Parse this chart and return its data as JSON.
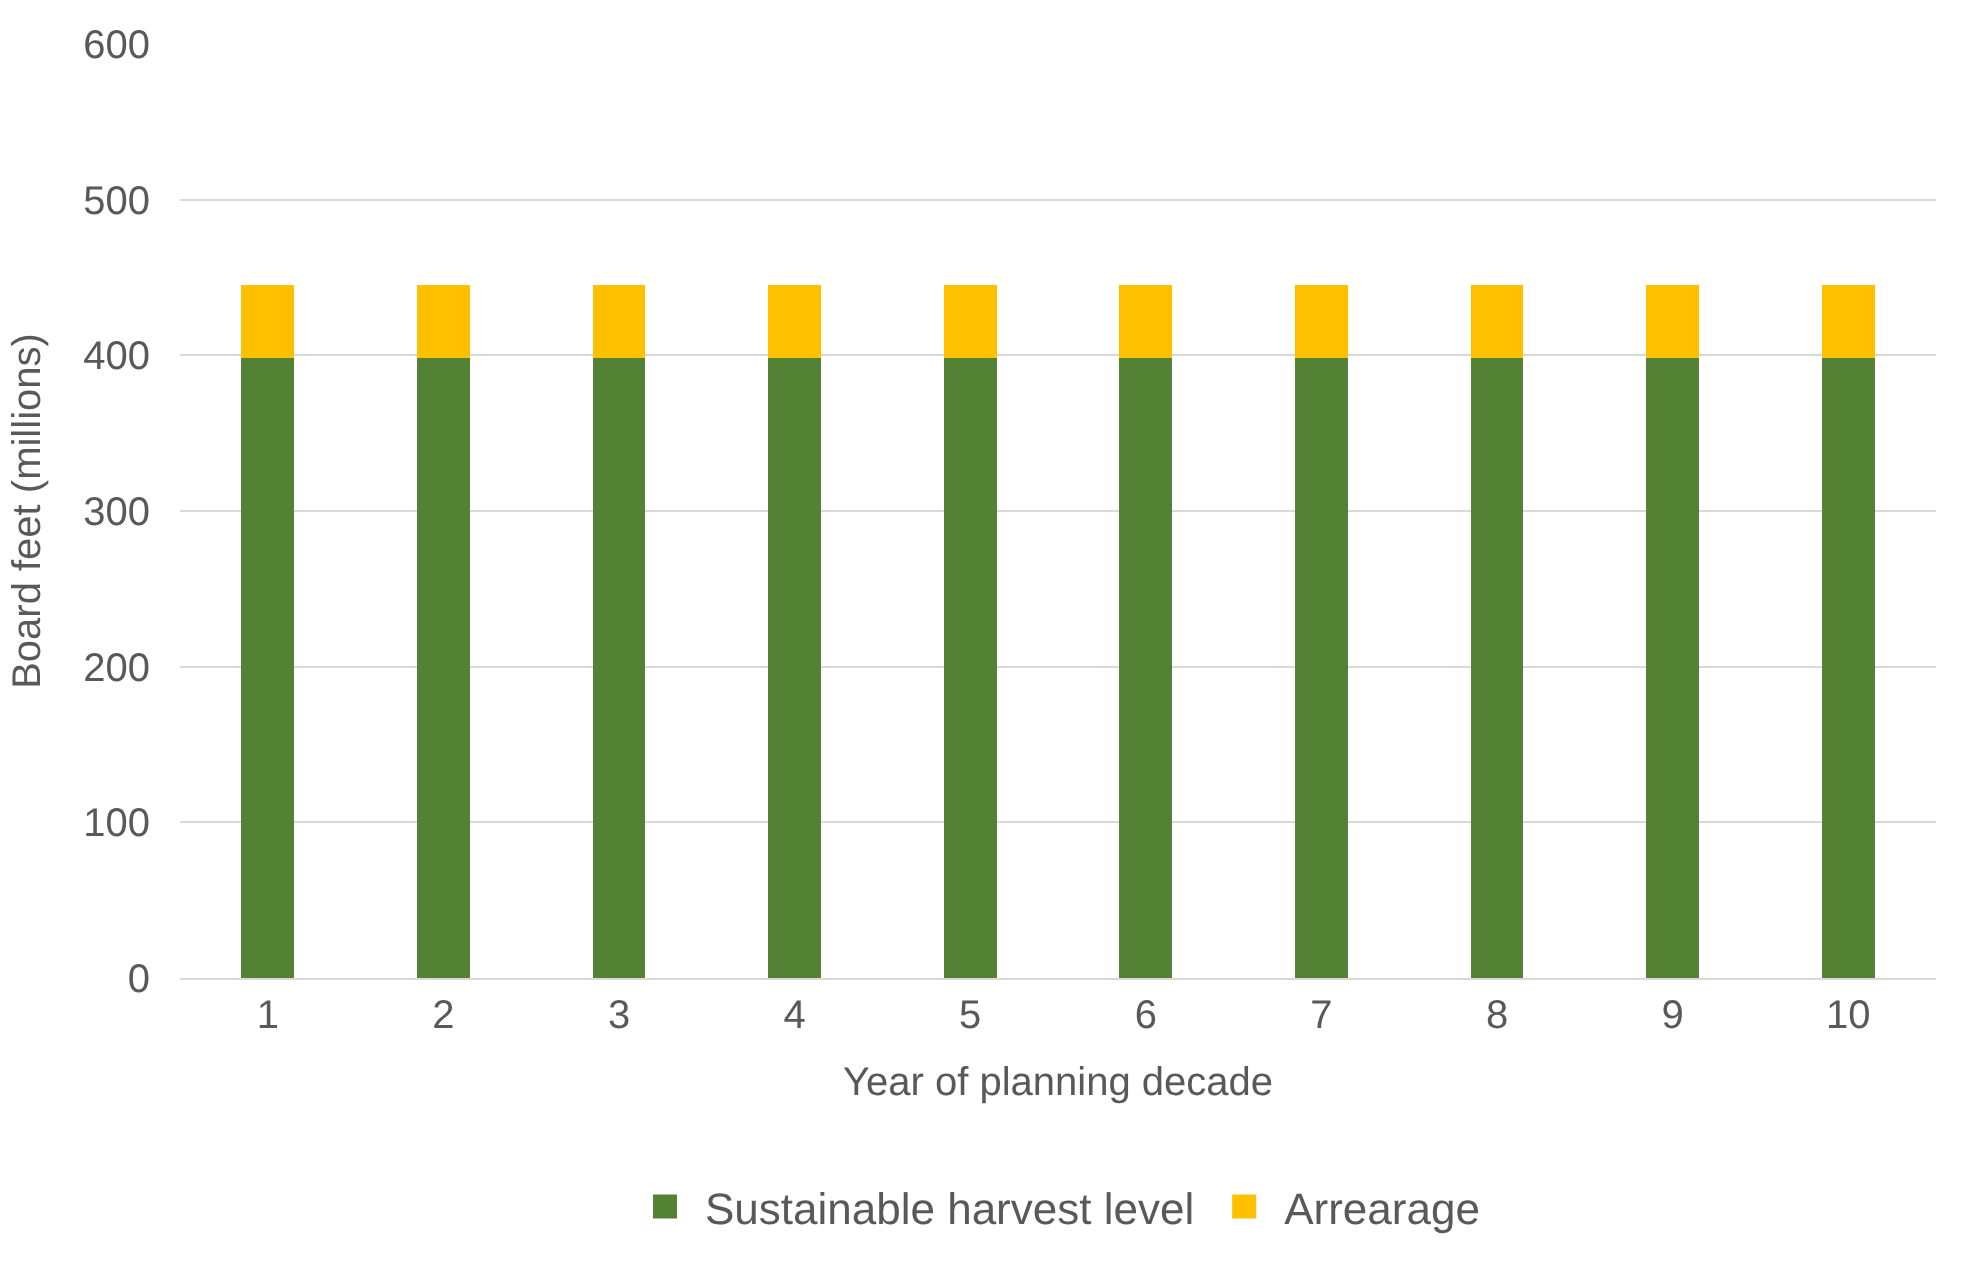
{
  "chart_data": {
    "type": "bar",
    "stacked": true,
    "xlabel": "Year of planning decade",
    "ylabel": "Board feet (millions)",
    "categories": [
      "1",
      "2",
      "3",
      "4",
      "5",
      "6",
      "7",
      "8",
      "9",
      "10"
    ],
    "series": [
      {
        "name": "Sustainable harvest level",
        "color": "#548235",
        "values": [
          398,
          398,
          398,
          398,
          398,
          398,
          398,
          398,
          398,
          398
        ]
      },
      {
        "name": "Arrearage",
        "color": "#ffc000",
        "values": [
          47,
          47,
          47,
          47,
          47,
          47,
          47,
          47,
          47,
          47
        ]
      }
    ],
    "ylim": [
      0,
      600
    ],
    "yticks": [
      0,
      100,
      200,
      300,
      400,
      500,
      600
    ],
    "grid": "y",
    "legend": "bottom"
  }
}
